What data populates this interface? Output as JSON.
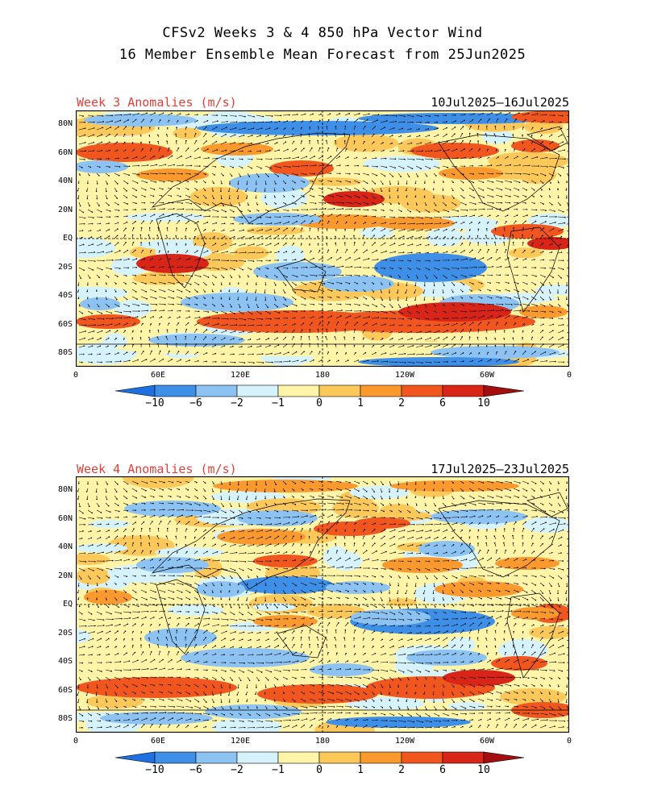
{
  "title": {
    "line1": "CFSv2 Weeks 3 & 4 850 hPa Vector Wind",
    "line2": "16 Member Ensemble Mean Forecast from 25Jun2025"
  },
  "panels": [
    {
      "label": "Week 3 Anomalies (m/s)",
      "date_range": "10Jul2025—16Jul2025"
    },
    {
      "label": "Week 4 Anomalies (m/s)",
      "date_range": "17Jul2025—23Jul2025"
    }
  ],
  "lat_ticks": [
    "80N",
    "60N",
    "40N",
    "20N",
    "EQ",
    "20S",
    "40S",
    "60S",
    "80S"
  ],
  "lon_ticks": [
    "0",
    "60E",
    "120E",
    "180",
    "120W",
    "60W",
    "0"
  ],
  "colorbar": {
    "labels": [
      "−10",
      "−6",
      "−2",
      "−1",
      "0",
      "1",
      "2",
      "6",
      "10"
    ],
    "colors": [
      "#1e6fe0",
      "#3d8fe8",
      "#8cc3f3",
      "#d6f2fb",
      "#fff4a8",
      "#fcc85a",
      "#fa9a2e",
      "#f0561d",
      "#d92418",
      "#a50e0e"
    ]
  }
}
